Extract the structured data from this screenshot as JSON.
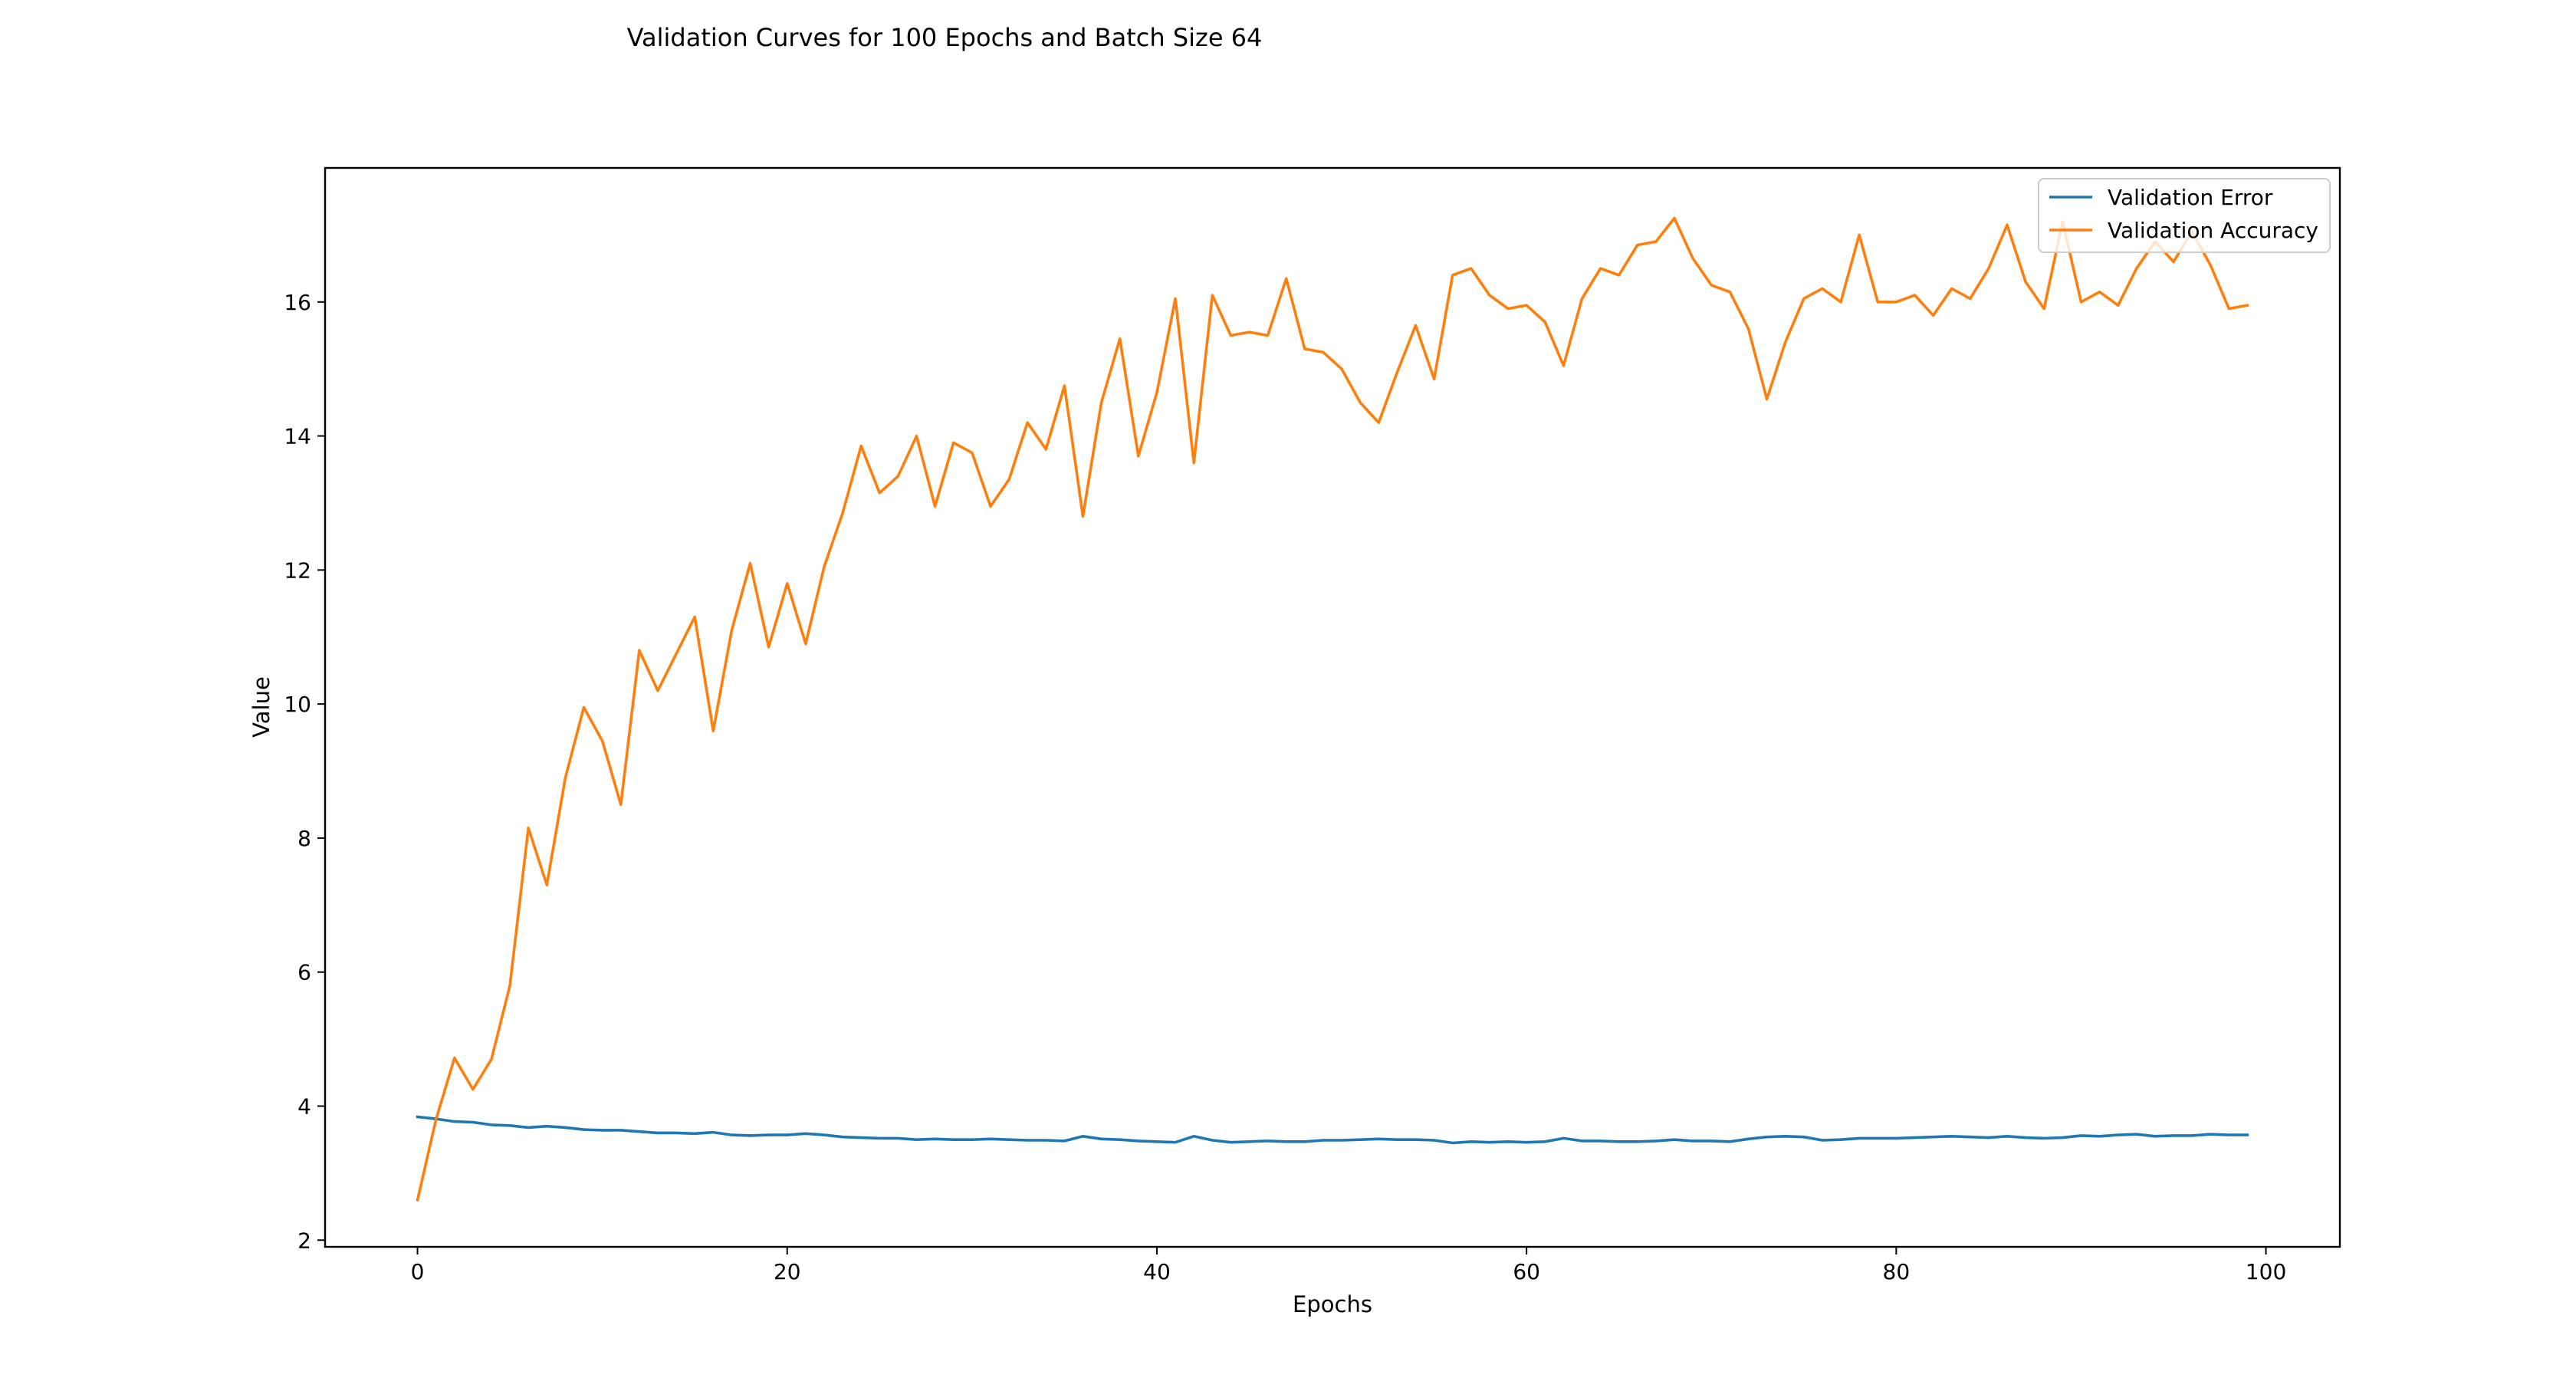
{
  "chart_data": {
    "type": "line",
    "title": "Validation Curves for 100 Epochs and Batch Size 64",
    "xlabel": "Epochs",
    "ylabel": "Value",
    "xlim": [
      -5,
      104
    ],
    "ylim": [
      1.9,
      18.0
    ],
    "xticks": [
      0,
      20,
      40,
      60,
      80,
      100
    ],
    "yticks": [
      2,
      4,
      6,
      8,
      10,
      12,
      14,
      16
    ],
    "grid": false,
    "legend_position": "top-right",
    "x": [
      0,
      1,
      2,
      3,
      4,
      5,
      6,
      7,
      8,
      9,
      10,
      11,
      12,
      13,
      14,
      15,
      16,
      17,
      18,
      19,
      20,
      21,
      22,
      23,
      24,
      25,
      26,
      27,
      28,
      29,
      30,
      31,
      32,
      33,
      34,
      35,
      36,
      37,
      38,
      39,
      40,
      41,
      42,
      43,
      44,
      45,
      46,
      47,
      48,
      49,
      50,
      51,
      52,
      53,
      54,
      55,
      56,
      57,
      58,
      59,
      60,
      61,
      62,
      63,
      64,
      65,
      66,
      67,
      68,
      69,
      70,
      71,
      72,
      73,
      74,
      75,
      76,
      77,
      78,
      79,
      80,
      81,
      82,
      83,
      84,
      85,
      86,
      87,
      88,
      89,
      90,
      91,
      92,
      93,
      94,
      95,
      96,
      97,
      98,
      99
    ],
    "series": [
      {
        "name": "Validation Error",
        "color": "#1f77b4",
        "values": [
          3.84,
          3.81,
          3.77,
          3.76,
          3.72,
          3.71,
          3.68,
          3.7,
          3.68,
          3.65,
          3.64,
          3.64,
          3.62,
          3.6,
          3.6,
          3.59,
          3.61,
          3.57,
          3.56,
          3.57,
          3.57,
          3.59,
          3.57,
          3.54,
          3.53,
          3.52,
          3.52,
          3.5,
          3.51,
          3.5,
          3.5,
          3.51,
          3.5,
          3.49,
          3.49,
          3.48,
          3.55,
          3.51,
          3.5,
          3.48,
          3.47,
          3.46,
          3.55,
          3.49,
          3.46,
          3.47,
          3.48,
          3.47,
          3.47,
          3.49,
          3.49,
          3.5,
          3.51,
          3.5,
          3.5,
          3.49,
          3.45,
          3.47,
          3.46,
          3.47,
          3.46,
          3.47,
          3.52,
          3.48,
          3.48,
          3.47,
          3.47,
          3.48,
          3.5,
          3.48,
          3.48,
          3.47,
          3.51,
          3.54,
          3.55,
          3.54,
          3.49,
          3.5,
          3.52,
          3.52,
          3.52,
          3.53,
          3.54,
          3.55,
          3.54,
          3.53,
          3.55,
          3.53,
          3.52,
          3.53,
          3.56,
          3.55,
          3.57,
          3.58,
          3.55,
          3.56,
          3.56,
          3.58,
          3.57,
          3.57
        ]
      },
      {
        "name": "Validation Accuracy",
        "color": "#ff7f0e",
        "values": [
          2.6,
          3.8,
          4.72,
          4.25,
          4.7,
          5.8,
          8.15,
          7.3,
          8.9,
          9.95,
          9.45,
          8.5,
          10.8,
          10.2,
          10.75,
          11.3,
          9.6,
          11.1,
          12.1,
          10.85,
          11.8,
          10.9,
          12.05,
          12.85,
          13.85,
          13.15,
          13.4,
          14.0,
          12.95,
          13.9,
          13.75,
          12.95,
          13.35,
          14.2,
          13.8,
          14.75,
          12.8,
          14.5,
          15.45,
          13.7,
          14.65,
          16.05,
          13.6,
          16.1,
          15.5,
          15.55,
          15.5,
          16.35,
          15.3,
          15.25,
          15.0,
          14.5,
          14.2,
          14.95,
          15.65,
          14.85,
          16.4,
          16.5,
          16.1,
          15.9,
          15.95,
          15.7,
          15.05,
          16.05,
          16.5,
          16.4,
          16.85,
          16.9,
          17.25,
          16.65,
          16.25,
          16.15,
          15.6,
          14.55,
          15.4,
          16.05,
          16.2,
          16.0,
          17.0,
          16.0,
          16.0,
          16.1,
          15.8,
          16.2,
          16.05,
          16.5,
          17.15,
          16.3,
          15.9,
          17.2,
          16.0,
          16.15,
          15.95,
          16.5,
          16.9,
          16.6,
          17.05,
          16.55,
          15.9,
          15.95
        ]
      }
    ]
  }
}
